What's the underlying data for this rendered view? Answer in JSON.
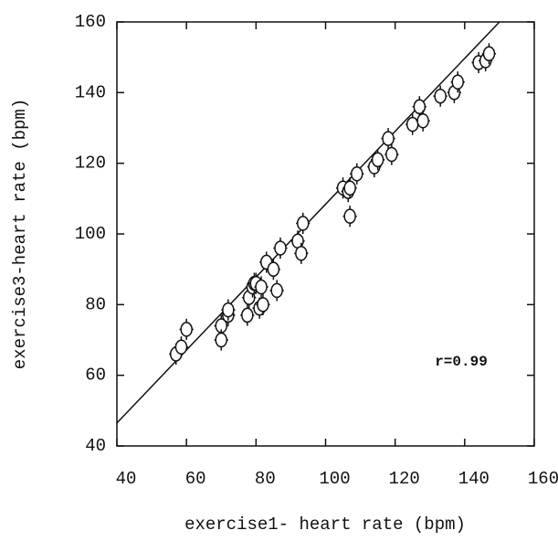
{
  "chart_data": {
    "type": "scatter",
    "x_label": "exercise1- heart rate (bpm)",
    "y_label": "exercise3-heart rate (bpm)",
    "annotation": "r=0.99",
    "xlim": [
      40,
      160
    ],
    "xticks": [
      40,
      60,
      80,
      100,
      120,
      140,
      160
    ],
    "ylim": [
      40,
      160
    ],
    "yticks": [
      40,
      60,
      80,
      100,
      120,
      140,
      160
    ],
    "xerr": 2,
    "yerr": 3,
    "fit_line": {
      "x": [
        40,
        150
      ],
      "y": [
        46.5,
        160
      ]
    },
    "color": "#111111",
    "series": [
      {
        "x": [
          57,
          58.5,
          60,
          70,
          70,
          72,
          72,
          77.5,
          78,
          79,
          79.5,
          80,
          81,
          81.5,
          82,
          83,
          85,
          86,
          87,
          92,
          93,
          93.5,
          105,
          106.5,
          107,
          107,
          109,
          114,
          115,
          118,
          119,
          125,
          127,
          128,
          133,
          137,
          138,
          144,
          146,
          147
        ],
        "values": [
          66,
          68,
          73,
          74,
          70,
          77,
          78.5,
          77,
          82,
          85,
          86,
          86,
          79,
          85,
          80,
          92,
          90,
          84,
          96,
          98,
          94.5,
          103,
          113,
          112,
          113,
          105,
          117,
          119,
          121,
          127,
          122.5,
          131,
          136,
          132,
          139,
          140,
          143,
          148.5,
          149,
          151
        ]
      }
    ]
  }
}
